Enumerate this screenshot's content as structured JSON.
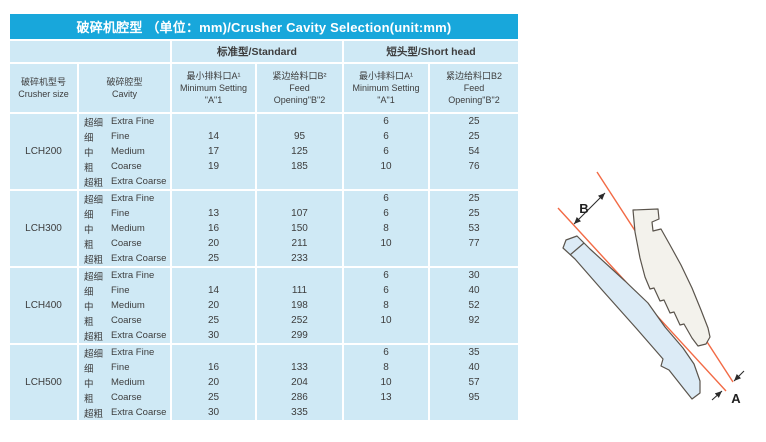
{
  "title": "破碎机腔型 （单位：mm)/Crusher Cavity Selection(unit:mm)",
  "table": {
    "headers": {
      "crusher_size_cn": "破碎机型号",
      "crusher_size_en": "Crusher size",
      "cavity_cn": "破碎腔型",
      "cavity_en": "Cavity",
      "standard_group": "标准型/Standard",
      "short_head_group": "短头型/Short head",
      "std_min_cn": "最小排料口A¹",
      "std_min_en1": "Minimum Setting",
      "std_min_en2": "\"A\"1",
      "std_feed_cn": "紧边给料口B²",
      "std_feed_en1": "Feed",
      "std_feed_en2": "Opening\"B\"2",
      "sh_min_cn": "最小排料口A¹",
      "sh_min_en1": "Minimum Setting",
      "sh_min_en2": "\"A\"1",
      "sh_feed_cn": "紧边给料口B2",
      "sh_feed_en1": "Feed",
      "sh_feed_en2": "Opening\"B\"2"
    },
    "groups": [
      {
        "model": "LCH200",
        "rows": [
          {
            "cavity_cn": "超细",
            "cavity_en": "Extra Fine",
            "values": [
              "",
              "",
              "6",
              "25"
            ]
          },
          {
            "cavity_cn": "细",
            "cavity_en": "Fine",
            "values": [
              "14",
              "95",
              "6",
              "25"
            ]
          },
          {
            "cavity_cn": "中",
            "cavity_en": "Medium",
            "values": [
              "17",
              "125",
              "6",
              "54"
            ]
          },
          {
            "cavity_cn": "粗",
            "cavity_en": "Coarse",
            "values": [
              "19",
              "185",
              "10",
              "76"
            ]
          },
          {
            "cavity_cn": "超粗",
            "cavity_en": "Extra Coarse",
            "values": [
              "",
              "",
              "",
              ""
            ]
          }
        ]
      },
      {
        "model": "LCH300",
        "rows": [
          {
            "cavity_cn": "超细",
            "cavity_en": "Extra Fine",
            "values": [
              "",
              "",
              "6",
              "25"
            ]
          },
          {
            "cavity_cn": "细",
            "cavity_en": "Fine",
            "values": [
              "13",
              "107",
              "6",
              "25"
            ]
          },
          {
            "cavity_cn": "中",
            "cavity_en": "Medium",
            "values": [
              "16",
              "150",
              "8",
              "53"
            ]
          },
          {
            "cavity_cn": "粗",
            "cavity_en": "Coarse",
            "values": [
              "20",
              "211",
              "10",
              "77"
            ]
          },
          {
            "cavity_cn": "超粗",
            "cavity_en": "Extra Coarse",
            "values": [
              "25",
              "233",
              "",
              ""
            ]
          }
        ]
      },
      {
        "model": "LCH400",
        "rows": [
          {
            "cavity_cn": "超细",
            "cavity_en": "Extra Fine",
            "values": [
              "",
              "",
              "6",
              "30"
            ]
          },
          {
            "cavity_cn": "细",
            "cavity_en": "Fine",
            "values": [
              "14",
              "111",
              "6",
              "40"
            ]
          },
          {
            "cavity_cn": "中",
            "cavity_en": "Medium",
            "values": [
              "20",
              "198",
              "8",
              "52"
            ]
          },
          {
            "cavity_cn": "粗",
            "cavity_en": "Coarse",
            "values": [
              "25",
              "252",
              "10",
              "92"
            ]
          },
          {
            "cavity_cn": "超粗",
            "cavity_en": "Extra Coarse",
            "values": [
              "30",
              "299",
              "",
              ""
            ]
          }
        ]
      },
      {
        "model": "LCH500",
        "rows": [
          {
            "cavity_cn": "超细",
            "cavity_en": "Extra Fine",
            "values": [
              "",
              "",
              "6",
              "35"
            ]
          },
          {
            "cavity_cn": "细",
            "cavity_en": "Fine",
            "values": [
              "16",
              "133",
              "8",
              "40"
            ]
          },
          {
            "cavity_cn": "中",
            "cavity_en": "Medium",
            "values": [
              "20",
              "204",
              "10",
              "57"
            ]
          },
          {
            "cavity_cn": "粗",
            "cavity_en": "Coarse",
            "values": [
              "25",
              "286",
              "13",
              "95"
            ]
          },
          {
            "cavity_cn": "超粗",
            "cavity_en": "Extra Coarse",
            "values": [
              "30",
              "335",
              "",
              ""
            ]
          }
        ]
      }
    ]
  },
  "diagram": {
    "label_b": "B",
    "label_a": "A"
  },
  "colors": {
    "title_bg": "#18a7db",
    "title_text": "#ffffff",
    "cell_bg": "#cfe9f5",
    "text": "#3d3d3d",
    "diagram_line": "#f26a45",
    "mantle_fill": "#dcebf6",
    "concave_fill": "#f3f2ec",
    "profile_outline": "#5a544c"
  }
}
